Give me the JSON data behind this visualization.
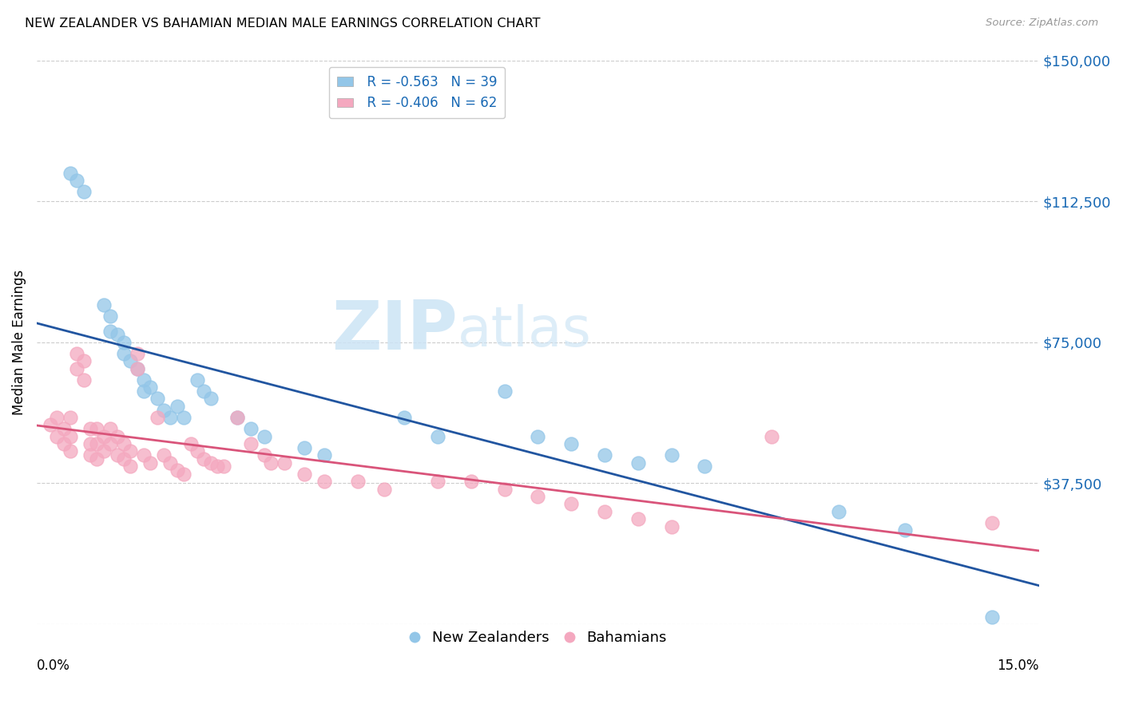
{
  "title": "NEW ZEALANDER VS BAHAMIAN MEDIAN MALE EARNINGS CORRELATION CHART",
  "source": "Source: ZipAtlas.com",
  "ylabel": "Median Male Earnings",
  "yticks": [
    0,
    37500,
    75000,
    112500,
    150000
  ],
  "ytick_labels": [
    "",
    "$37,500",
    "$75,000",
    "$112,500",
    "$150,000"
  ],
  "xmin": 0.0,
  "xmax": 0.15,
  "ymin": 0,
  "ymax": 150000,
  "legend_r1": "R = -0.563",
  "legend_n1": "N = 39",
  "legend_r2": "R = -0.406",
  "legend_n2": "N = 62",
  "color_blue": "#93c6e8",
  "color_pink": "#f4a8bf",
  "line_color_blue": "#2155a0",
  "line_color_pink": "#d9547a",
  "nz_x": [
    0.005,
    0.006,
    0.007,
    0.01,
    0.011,
    0.011,
    0.012,
    0.013,
    0.013,
    0.014,
    0.015,
    0.016,
    0.016,
    0.017,
    0.018,
    0.019,
    0.02,
    0.021,
    0.022,
    0.024,
    0.025,
    0.026,
    0.03,
    0.032,
    0.034,
    0.04,
    0.043,
    0.055,
    0.06,
    0.07,
    0.075,
    0.08,
    0.085,
    0.09,
    0.095,
    0.1,
    0.12,
    0.13,
    0.143
  ],
  "nz_y": [
    120000,
    118000,
    115000,
    85000,
    82000,
    78000,
    77000,
    75000,
    72000,
    70000,
    68000,
    65000,
    62000,
    63000,
    60000,
    57000,
    55000,
    58000,
    55000,
    65000,
    62000,
    60000,
    55000,
    52000,
    50000,
    47000,
    45000,
    55000,
    50000,
    62000,
    50000,
    48000,
    45000,
    43000,
    45000,
    42000,
    30000,
    25000,
    2000
  ],
  "bah_x": [
    0.002,
    0.003,
    0.003,
    0.004,
    0.004,
    0.005,
    0.005,
    0.005,
    0.006,
    0.006,
    0.007,
    0.007,
    0.008,
    0.008,
    0.008,
    0.009,
    0.009,
    0.009,
    0.01,
    0.01,
    0.011,
    0.011,
    0.012,
    0.012,
    0.013,
    0.013,
    0.014,
    0.014,
    0.015,
    0.015,
    0.016,
    0.017,
    0.018,
    0.019,
    0.02,
    0.021,
    0.022,
    0.023,
    0.024,
    0.025,
    0.026,
    0.027,
    0.028,
    0.03,
    0.032,
    0.034,
    0.035,
    0.037,
    0.04,
    0.043,
    0.048,
    0.052,
    0.06,
    0.065,
    0.07,
    0.075,
    0.08,
    0.085,
    0.09,
    0.095,
    0.11,
    0.143
  ],
  "bah_y": [
    53000,
    55000,
    50000,
    52000,
    48000,
    55000,
    50000,
    46000,
    72000,
    68000,
    70000,
    65000,
    52000,
    48000,
    45000,
    52000,
    48000,
    44000,
    50000,
    46000,
    52000,
    48000,
    50000,
    45000,
    48000,
    44000,
    46000,
    42000,
    72000,
    68000,
    45000,
    43000,
    55000,
    45000,
    43000,
    41000,
    40000,
    48000,
    46000,
    44000,
    43000,
    42000,
    42000,
    55000,
    48000,
    45000,
    43000,
    43000,
    40000,
    38000,
    38000,
    36000,
    38000,
    38000,
    36000,
    34000,
    32000,
    30000,
    28000,
    26000,
    50000,
    27000
  ]
}
